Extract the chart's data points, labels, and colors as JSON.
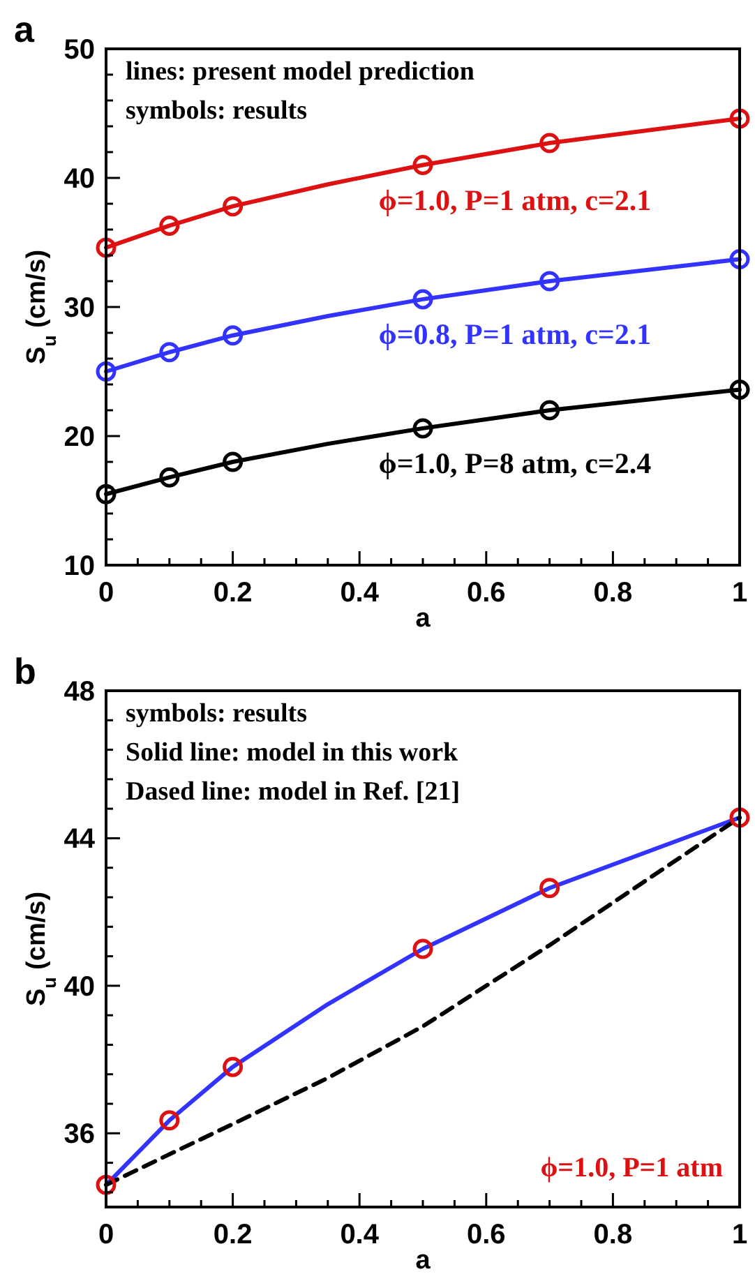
{
  "chart_data": [
    {
      "type": "line",
      "title": "a",
      "xlabel": "a",
      "ylabel": "S$_{u}$ (cm/s)",
      "xlim": [
        0,
        1
      ],
      "ylim": [
        10,
        50
      ],
      "xticks": [
        0,
        {
          "value": 0.05,
          "label": null
        },
        0.2,
        {
          "value": 0.1,
          "label": null
        },
        {
          "value": 0.15,
          "label": null
        },
        {
          "value": 0.25,
          "label": null
        },
        {
          "value": 0.3,
          "label": null
        },
        {
          "value": 0.35,
          "label": null
        },
        0.4,
        {
          "value": 0.45,
          "label": null
        },
        {
          "value": 0.5,
          "label": null
        },
        {
          "value": 0.55,
          "label": null
        },
        0.6,
        {
          "value": 0.65,
          "label": null
        },
        {
          "value": 0.7,
          "label": null
        },
        {
          "value": 0.75,
          "label": null
        },
        0.8,
        {
          "value": 0.85,
          "label": null
        },
        {
          "value": 0.9,
          "label": null
        },
        {
          "value": 0.95,
          "label": null
        },
        1
      ],
      "yticks": [
        10,
        {
          "value": 12,
          "label": null
        },
        {
          "value": 14,
          "label": null
        },
        {
          "value": 16,
          "label": null
        },
        {
          "value": 18,
          "label": null
        },
        20,
        {
          "value": 22,
          "label": null
        },
        {
          "value": 24,
          "label": null
        },
        {
          "value": 26,
          "label": null
        },
        {
          "value": 28,
          "label": null
        },
        30,
        {
          "value": 32,
          "label": null
        },
        {
          "value": 34,
          "label": null
        },
        {
          "value": 36,
          "label": null
        },
        {
          "value": 38,
          "label": null
        },
        40,
        {
          "value": 42,
          "label": null
        },
        {
          "value": 44,
          "label": null
        },
        {
          "value": 46,
          "label": null
        },
        {
          "value": 48,
          "label": null
        },
        50
      ],
      "grid": false,
      "annotations": [
        "lines:  present model prediction",
        "symbols: results"
      ],
      "series": [
        {
          "name": "ϕ=1.0, P=1 atm, c=2.1",
          "color": "#dd1111",
          "line_style": "solid",
          "x": [
            0,
            0.1,
            0.2,
            0.35,
            0.5,
            0.7,
            1
          ],
          "values": [
            34.6,
            36.3,
            37.8,
            39.5,
            41.0,
            42.7,
            44.6
          ]
        },
        {
          "name": "ϕ=0.8, P=1 atm, c=2.1",
          "color": "#3333ff",
          "line_style": "solid",
          "x": [
            0,
            0.1,
            0.2,
            0.35,
            0.5,
            0.7,
            1
          ],
          "values": [
            25.0,
            26.5,
            27.8,
            29.3,
            30.6,
            32.0,
            33.7
          ]
        },
        {
          "name": "ϕ=1.0, P=8 atm, c=2.4",
          "color": "#000000",
          "line_style": "solid",
          "x": [
            0,
            0.1,
            0.2,
            0.35,
            0.5,
            0.7,
            1
          ],
          "values": [
            15.5,
            16.8,
            18.0,
            19.4,
            20.6,
            22.0,
            23.6
          ]
        },
        {
          "type": "scatter",
          "marker": "circle",
          "color": "#dd1111",
          "x": [
            0,
            0.1,
            0.2,
            0.5,
            0.7,
            1
          ],
          "values": [
            34.6,
            36.3,
            37.8,
            41.0,
            42.7,
            44.6
          ]
        },
        {
          "type": "scatter",
          "marker": "circle",
          "color": "#3333ff",
          "x": [
            0,
            0.1,
            0.2,
            0.5,
            0.7,
            1
          ],
          "values": [
            25.0,
            26.5,
            27.8,
            30.6,
            32.0,
            33.7
          ]
        },
        {
          "type": "scatter",
          "marker": "circle",
          "color": "#000000",
          "x": [
            0,
            0.1,
            0.2,
            0.5,
            0.7,
            1
          ],
          "values": [
            15.5,
            16.8,
            18.0,
            20.6,
            22.0,
            23.6
          ]
        }
      ]
    },
    {
      "type": "line",
      "title": "b",
      "xlabel": "a",
      "ylabel": "S$_{u}$ (cm/s)",
      "xlim": [
        0,
        1
      ],
      "ylim": [
        34,
        48
      ],
      "xticks": [
        0,
        {
          "value": 0.05,
          "label": null
        },
        0.2,
        {
          "value": 0.1,
          "label": null
        },
        {
          "value": 0.15,
          "label": null
        },
        {
          "value": 0.25,
          "label": null
        },
        {
          "value": 0.3,
          "label": null
        },
        {
          "value": 0.35,
          "label": null
        },
        0.4,
        {
          "value": 0.45,
          "label": null
        },
        {
          "value": 0.5,
          "label": null
        },
        {
          "value": 0.55,
          "label": null
        },
        0.6,
        {
          "value": 0.65,
          "label": null
        },
        {
          "value": 0.7,
          "label": null
        },
        {
          "value": 0.75,
          "label": null
        },
        0.8,
        {
          "value": 0.85,
          "label": null
        },
        {
          "value": 0.9,
          "label": null
        },
        {
          "value": 0.95,
          "label": null
        },
        1
      ],
      "yticks": [
        {
          "value": 34.4,
          "label": null
        },
        {
          "value": 35.2,
          "label": null
        },
        36,
        {
          "value": 36.8,
          "label": null
        },
        {
          "value": 37.6,
          "label": null
        },
        {
          "value": 38.4,
          "label": null
        },
        {
          "value": 39.2,
          "label": null
        },
        40,
        {
          "value": 40.8,
          "label": null
        },
        {
          "value": 41.6,
          "label": null
        },
        {
          "value": 42.4,
          "label": null
        },
        {
          "value": 43.2,
          "label": null
        },
        44,
        {
          "value": 44.8,
          "label": null
        },
        {
          "value": 45.6,
          "label": null
        },
        {
          "value": 46.4,
          "label": null
        },
        {
          "value": 47.2,
          "label": null
        },
        48
      ],
      "grid": false,
      "annotations": [
        "symbols: results",
        "Solid line: model in this work",
        "Dased line: model in Ref. [21]",
        "ϕ=1.0, P=1 atm"
      ],
      "series": [
        {
          "color": "#3333ff",
          "line_style": "solid",
          "x": [
            0,
            0.1,
            0.2,
            0.35,
            0.5,
            0.7,
            1
          ],
          "values": [
            34.6,
            36.35,
            37.8,
            39.5,
            41.0,
            42.65,
            44.56
          ]
        },
        {
          "color": "#000000",
          "line_style": "dashed",
          "x": [
            0,
            0.1,
            0.2,
            0.35,
            0.5,
            0.7,
            1
          ],
          "values": [
            34.6,
            35.43,
            36.25,
            37.5,
            38.9,
            41.1,
            44.56
          ]
        },
        {
          "type": "scatter",
          "marker": "circle",
          "color": "#dd1111",
          "x": [
            0,
            0.1,
            0.2,
            0.5,
            0.7,
            1
          ],
          "values": [
            34.6,
            36.35,
            37.8,
            41.0,
            42.65,
            44.56
          ]
        }
      ]
    }
  ]
}
